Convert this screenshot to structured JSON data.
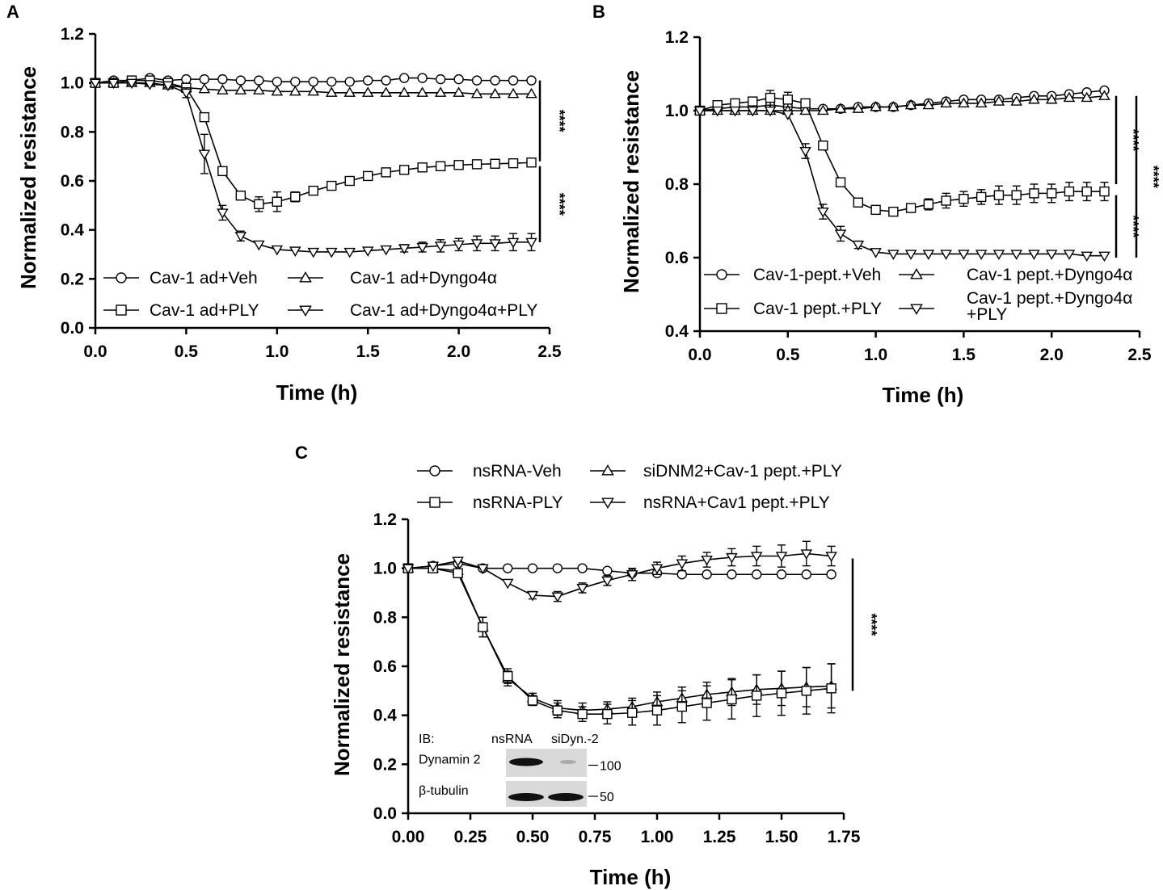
{
  "chart_data": [
    {
      "panel": "A",
      "type": "line",
      "xlabel": "Time (h)",
      "ylabel": "Normalized resistance",
      "xlim": [
        0,
        2.5
      ],
      "ylim": [
        0,
        1.2
      ],
      "xticks": [
        "0.0",
        "0.5",
        "1.0",
        "1.5",
        "2.0",
        "2.5"
      ],
      "yticks": [
        "0.0",
        "0.2",
        "0.4",
        "0.6",
        "0.8",
        "1.0",
        "1.2"
      ],
      "x": [
        0,
        0.1,
        0.2,
        0.3,
        0.4,
        0.5,
        0.6,
        0.7,
        0.8,
        0.9,
        1.0,
        1.1,
        1.2,
        1.3,
        1.4,
        1.5,
        1.6,
        1.7,
        1.8,
        1.9,
        2.0,
        2.1,
        2.2,
        2.3,
        2.4
      ],
      "series": [
        {
          "name": "Cav-1 ad+Veh",
          "marker": "circle",
          "values": [
            1.0,
            1.01,
            1.01,
            1.02,
            1.01,
            1.015,
            1.015,
            1.015,
            1.01,
            1.01,
            1.005,
            1.005,
            1.005,
            1.005,
            1.005,
            1.01,
            1.01,
            1.02,
            1.02,
            1.015,
            1.015,
            1.01,
            1.01,
            1.01,
            1.01
          ],
          "err": [
            0,
            0,
            0,
            0,
            0,
            0,
            0,
            0,
            0,
            0,
            0,
            0,
            0,
            0,
            0,
            0,
            0,
            0,
            0,
            0,
            0,
            0,
            0,
            0,
            0
          ]
        },
        {
          "name": "Cav-1 ad+Dyngo4α",
          "marker": "triangle-up",
          "values": [
            1.0,
            1.0,
            1.0,
            1.0,
            0.99,
            0.98,
            0.975,
            0.97,
            0.97,
            0.97,
            0.965,
            0.965,
            0.965,
            0.96,
            0.96,
            0.96,
            0.96,
            0.96,
            0.96,
            0.96,
            0.96,
            0.955,
            0.955,
            0.955,
            0.955
          ],
          "err": [
            0,
            0,
            0,
            0,
            0,
            0,
            0,
            0,
            0,
            0,
            0,
            0,
            0,
            0,
            0,
            0,
            0,
            0,
            0,
            0,
            0,
            0,
            0,
            0,
            0
          ]
        },
        {
          "name": "Cav-1 ad+PLY",
          "marker": "square",
          "values": [
            1.0,
            1.0,
            1.01,
            1.01,
            1.0,
            0.98,
            0.86,
            0.64,
            0.54,
            0.505,
            0.515,
            0.535,
            0.56,
            0.58,
            0.6,
            0.62,
            0.635,
            0.645,
            0.655,
            0.66,
            0.665,
            0.668,
            0.67,
            0.672,
            0.675
          ],
          "err": [
            0,
            0,
            0,
            0,
            0,
            0,
            0,
            0,
            0,
            0.03,
            0.04,
            0.02,
            0,
            0,
            0,
            0,
            0,
            0,
            0,
            0,
            0,
            0,
            0,
            0,
            0
          ]
        },
        {
          "name": "Cav-1 ad+Dyngo4α+PLY",
          "marker": "triangle-down",
          "values": [
            1.0,
            1.0,
            1.0,
            0.995,
            0.99,
            0.96,
            0.71,
            0.47,
            0.375,
            0.34,
            0.32,
            0.315,
            0.31,
            0.31,
            0.31,
            0.315,
            0.32,
            0.325,
            0.33,
            0.335,
            0.34,
            0.345,
            0.345,
            0.35,
            0.35
          ],
          "err": [
            0,
            0,
            0,
            0,
            0,
            0.02,
            0.08,
            0.03,
            0.02,
            0,
            0,
            0,
            0,
            0,
            0,
            0,
            0,
            0.015,
            0.02,
            0.025,
            0.025,
            0.03,
            0.03,
            0.035,
            0.035
          ]
        }
      ],
      "significance": [
        {
          "label": "****",
          "from": 1.01,
          "to": 0.68
        },
        {
          "label": "****",
          "from": 0.66,
          "to": 0.35
        }
      ]
    },
    {
      "panel": "B",
      "type": "line",
      "xlabel": "Time (h)",
      "ylabel": "Normalized resistance",
      "xlim": [
        0,
        2.5
      ],
      "ylim": [
        0.4,
        1.2
      ],
      "xticks": [
        "0.0",
        "0.5",
        "1.0",
        "1.5",
        "2.0",
        "2.5"
      ],
      "yticks": [
        "0.4",
        "0.6",
        "0.8",
        "1.0",
        "1.2"
      ],
      "x": [
        0,
        0.1,
        0.2,
        0.3,
        0.4,
        0.5,
        0.6,
        0.7,
        0.8,
        0.9,
        1.0,
        1.1,
        1.2,
        1.3,
        1.4,
        1.5,
        1.6,
        1.7,
        1.8,
        1.9,
        2.0,
        2.1,
        2.2,
        2.3
      ],
      "series": [
        {
          "name": "Cav-1-pept.+Veh",
          "marker": "circle",
          "values": [
            1.0,
            1.005,
            1.01,
            1.01,
            1.015,
            1.01,
            1.005,
            1.005,
            1.005,
            1.01,
            1.01,
            1.01,
            1.015,
            1.02,
            1.025,
            1.03,
            1.03,
            1.03,
            1.035,
            1.04,
            1.04,
            1.045,
            1.05,
            1.055
          ],
          "err": [
            0,
            0,
            0,
            0,
            0,
            0,
            0,
            0,
            0,
            0,
            0,
            0,
            0,
            0,
            0,
            0,
            0,
            0,
            0,
            0,
            0,
            0,
            0,
            0
          ]
        },
        {
          "name": "Cav-1 pept.+Dyngo4α",
          "marker": "triangle-up",
          "values": [
            1.0,
            1.0,
            1.0,
            1.0,
            1.0,
            1.0,
            1.0,
            1.0,
            1.005,
            1.005,
            1.01,
            1.01,
            1.015,
            1.015,
            1.02,
            1.02,
            1.02,
            1.025,
            1.025,
            1.03,
            1.03,
            1.035,
            1.035,
            1.04
          ],
          "err": [
            0,
            0,
            0,
            0,
            0,
            0,
            0,
            0,
            0,
            0,
            0,
            0,
            0,
            0,
            0,
            0,
            0,
            0,
            0,
            0,
            0,
            0,
            0,
            0
          ]
        },
        {
          "name": "Cav-1 pept.+PLY",
          "marker": "square",
          "values": [
            1.0,
            1.015,
            1.02,
            1.025,
            1.035,
            1.03,
            1.02,
            0.905,
            0.805,
            0.75,
            0.73,
            0.725,
            0.735,
            0.745,
            0.755,
            0.76,
            0.765,
            0.77,
            0.77,
            0.775,
            0.775,
            0.78,
            0.78,
            0.78
          ],
          "err": [
            0,
            0,
            0,
            0,
            0.02,
            0.02,
            0,
            0,
            0,
            0,
            0,
            0,
            0,
            0.015,
            0.02,
            0.02,
            0.02,
            0.025,
            0.025,
            0.025,
            0.025,
            0.025,
            0.025,
            0.025
          ]
        },
        {
          "name": "Cav-1 pept.+Dyngo4α+PLY",
          "marker": "triangle-down",
          "values": [
            1.0,
            1.0,
            1.0,
            1.0,
            1.0,
            0.99,
            0.89,
            0.725,
            0.665,
            0.635,
            0.615,
            0.61,
            0.61,
            0.61,
            0.61,
            0.61,
            0.61,
            0.61,
            0.61,
            0.61,
            0.61,
            0.61,
            0.605,
            0.605
          ],
          "err": [
            0,
            0,
            0,
            0,
            0,
            0,
            0.02,
            0.02,
            0.02,
            0.01,
            0,
            0,
            0,
            0,
            0,
            0,
            0,
            0,
            0,
            0,
            0,
            0,
            0,
            0
          ]
        }
      ],
      "significance": [
        {
          "label": "****",
          "from": 1.04,
          "to": 0.8
        },
        {
          "label": "****",
          "from": 0.77,
          "to": 0.6
        },
        {
          "label": "****",
          "from": 1.04,
          "to": 0.6
        }
      ]
    },
    {
      "panel": "C",
      "type": "line",
      "xlabel": "Time (h)",
      "ylabel": "Normalized resistance",
      "xlim": [
        0,
        1.75
      ],
      "ylim": [
        0,
        1.2
      ],
      "xticks": [
        "0.00",
        "0.25",
        "0.50",
        "0.75",
        "1.00",
        "1.25",
        "1.50",
        "1.75"
      ],
      "yticks": [
        "0.0",
        "0.2",
        "0.4",
        "0.6",
        "0.8",
        "1.0",
        "1.2"
      ],
      "x": [
        0,
        0.1,
        0.2,
        0.3,
        0.4,
        0.5,
        0.6,
        0.7,
        0.8,
        0.9,
        1.0,
        1.1,
        1.2,
        1.3,
        1.4,
        1.5,
        1.6,
        1.7
      ],
      "series": [
        {
          "name": "nsRNA-Veh",
          "marker": "circle",
          "values": [
            1.0,
            1.01,
            1.02,
            1.0,
            1.0,
            1.0,
            1.0,
            1.0,
            0.99,
            0.98,
            0.98,
            0.975,
            0.975,
            0.975,
            0.975,
            0.975,
            0.975,
            0.975
          ],
          "err": [
            0,
            0,
            0,
            0,
            0,
            0,
            0,
            0,
            0,
            0,
            0,
            0,
            0,
            0,
            0,
            0,
            0,
            0
          ]
        },
        {
          "name": "siDNM2+Cav-1 pept.+PLY",
          "marker": "triangle-up",
          "values": [
            1.0,
            1.0,
            0.99,
            0.76,
            0.55,
            0.47,
            0.43,
            0.42,
            0.425,
            0.435,
            0.455,
            0.47,
            0.485,
            0.495,
            0.505,
            0.51,
            0.515,
            0.52
          ],
          "err": [
            0,
            0,
            0,
            0.04,
            0.03,
            0.02,
            0.03,
            0.03,
            0.03,
            0.035,
            0.04,
            0.045,
            0.05,
            0.055,
            0.06,
            0.07,
            0.08,
            0.09
          ]
        },
        {
          "name": "nsRNA-PLY",
          "marker": "square",
          "values": [
            1.0,
            1.0,
            0.98,
            0.76,
            0.56,
            0.46,
            0.42,
            0.405,
            0.405,
            0.41,
            0.42,
            0.435,
            0.45,
            0.465,
            0.48,
            0.49,
            0.5,
            0.51
          ],
          "err": [
            0,
            0,
            0,
            0.04,
            0.03,
            0.02,
            0.03,
            0.03,
            0.04,
            0.05,
            0.06,
            0.065,
            0.07,
            0.08,
            0.085,
            0.09,
            0.095,
            0.1
          ]
        },
        {
          "name": "nsRNA+Cav1 pept.+PLY",
          "marker": "triangle-down",
          "values": [
            1.0,
            1.01,
            1.03,
            1.0,
            0.94,
            0.89,
            0.885,
            0.92,
            0.95,
            0.975,
            1.0,
            1.02,
            1.035,
            1.045,
            1.05,
            1.05,
            1.06,
            1.05
          ],
          "err": [
            0,
            0,
            0,
            0,
            0,
            0.015,
            0.02,
            0.02,
            0.02,
            0.025,
            0.025,
            0.03,
            0.03,
            0.035,
            0.04,
            0.045,
            0.05,
            0.04
          ]
        }
      ],
      "significance": [
        {
          "label": "****",
          "from": 1.04,
          "to": 0.5
        }
      ],
      "inset": {
        "ib_label": "IB:",
        "lanes": [
          "nsRNA",
          "siDyn.-2"
        ],
        "rows": [
          {
            "protein": "Dynamin 2",
            "marker_kda": "100"
          },
          {
            "protein": "β-tubulin",
            "marker_kda": "50"
          }
        ]
      }
    }
  ]
}
